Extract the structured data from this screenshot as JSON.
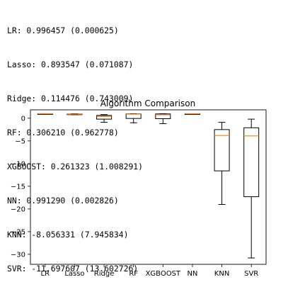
{
  "results": [
    {
      "name": "LR",
      "text": "LR: 0.996457 (0.000625)"
    },
    {
      "name": "Lasso",
      "text": "Lasso: 0.893547 (0.071087)"
    },
    {
      "name": "Ridge",
      "text": "Ridge: 0.114476 (0.743009)"
    },
    {
      "name": "RF",
      "text": "RF: 0.306210 (0.962778)"
    },
    {
      "name": "XGBOOST",
      "text": "XGBOOST: 0.261323 (1.008291)"
    },
    {
      "name": "NN",
      "text": "NN: 0.991290 (0.002826)"
    },
    {
      "name": "KNN",
      "text": "KNN: -8.056331 (7.945834)"
    },
    {
      "name": "SVR",
      "text": "SVR: -11.697607 (13.602726)"
    }
  ],
  "chart_data": {
    "type": "box",
    "title": "Algorithm Comparison",
    "xlabel": "",
    "ylabel": "",
    "ylim": [
      -32.2,
      1.85
    ],
    "yticks": [
      0,
      -5,
      -10,
      -15,
      -20,
      -25,
      -30
    ],
    "grid": false,
    "colors": {
      "box": "#000000",
      "median": "#ff7f0e"
    },
    "boxes": [
      {
        "label": "LR",
        "whislo": 0.994,
        "q1": 0.9955,
        "med": 0.9965,
        "q3": 0.9975,
        "whishi": 0.998
      },
      {
        "label": "Lasso",
        "whislo": 0.78,
        "q1": 0.85,
        "med": 0.89,
        "q3": 0.94,
        "whishi": 0.99
      },
      {
        "label": "Ridge",
        "whislo": -0.9,
        "q1": -0.2,
        "med": 0.4,
        "q3": 0.62,
        "whishi": 0.8
      },
      {
        "label": "RF",
        "whislo": -1.0,
        "q1": -0.05,
        "med": 0.9,
        "q3": 0.96,
        "whishi": 1.0
      },
      {
        "label": "XGBOOST",
        "whislo": -1.2,
        "q1": -0.1,
        "med": 0.75,
        "q3": 0.95,
        "whishi": 1.0
      },
      {
        "label": "NN",
        "whislo": 0.986,
        "q1": 0.989,
        "med": 0.991,
        "q3": 0.993,
        "whishi": 0.996
      },
      {
        "label": "KNN",
        "whislo": -19.0,
        "q1": -11.6,
        "med": -3.8,
        "q3": -2.5,
        "whishi": -0.9
      },
      {
        "label": "SVR",
        "whislo": -30.8,
        "q1": -17.3,
        "med": -3.9,
        "q3": -2.1,
        "whishi": -0.2
      }
    ]
  }
}
